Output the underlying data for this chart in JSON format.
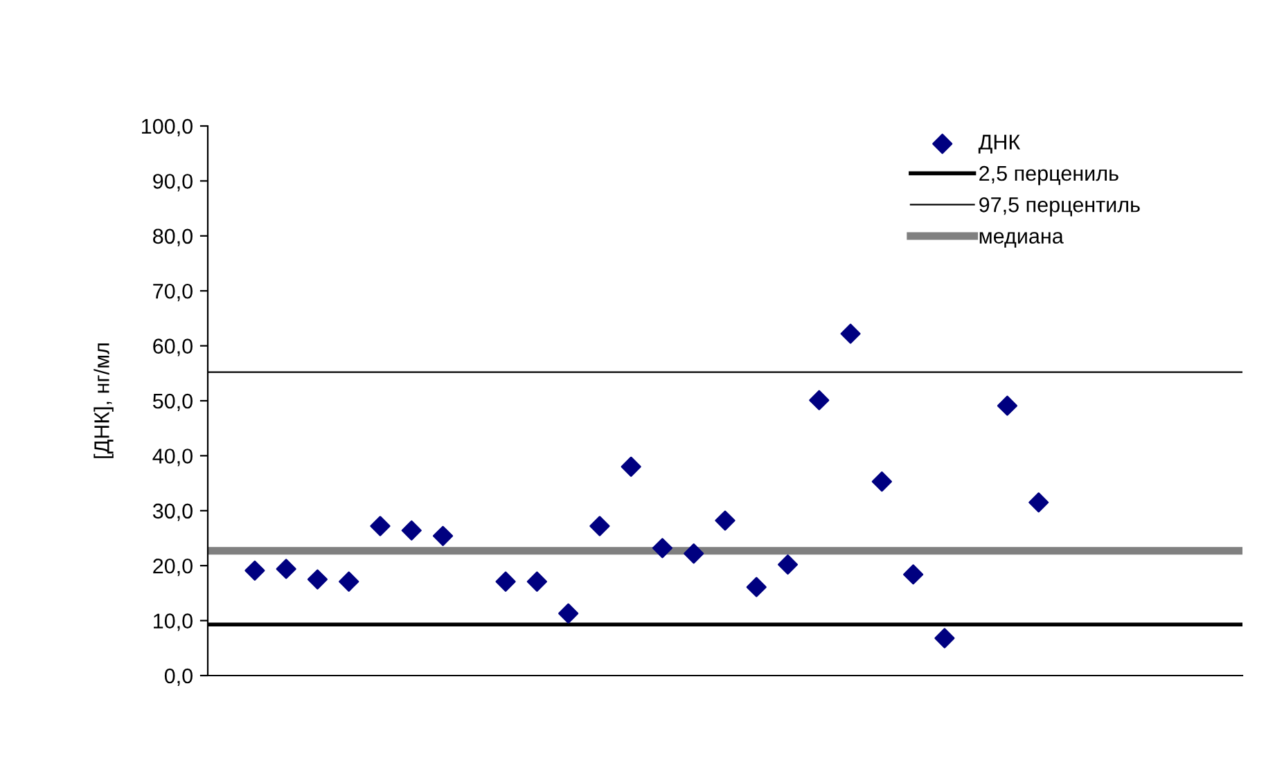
{
  "chart_data": {
    "type": "scatter",
    "ylabel": "[ДНК], нг/мл",
    "categories": [
      null,
      null,
      null,
      null,
      null,
      null,
      null,
      null,
      null,
      null,
      null,
      null,
      null,
      null,
      null,
      null,
      null,
      null,
      null,
      null,
      null,
      null,
      null,
      null,
      null,
      null,
      null,
      null,
      null,
      null,
      null,
      null,
      null
    ],
    "series": [
      {
        "name": "ДНК",
        "color": "#000080",
        "values": [
          null,
          19.1,
          19.4,
          17.5,
          17.1,
          27.2,
          26.4,
          25.4,
          null,
          17.1,
          17.1,
          11.3,
          27.2,
          38.0,
          23.2,
          22.2,
          28.2,
          16.1,
          20.2,
          50.1,
          62.2,
          35.3,
          18.4,
          6.8,
          null,
          49.1,
          31.5,
          null,
          null,
          null,
          null,
          null,
          null
        ]
      }
    ],
    "marker": "diamond",
    "ylim": [
      0,
      100
    ],
    "yticks": [
      {
        "value": 0,
        "label": "0,0"
      },
      {
        "value": 10,
        "label": "10,0"
      },
      {
        "value": 20,
        "label": "20,0"
      },
      {
        "value": 30,
        "label": "30,0"
      },
      {
        "value": 40,
        "label": "40,0"
      },
      {
        "value": 50,
        "label": "50,0"
      },
      {
        "value": 60,
        "label": "60,0"
      },
      {
        "value": 70,
        "label": "70,0"
      },
      {
        "value": 80,
        "label": "80,0"
      },
      {
        "value": 90,
        "label": "90,0"
      },
      {
        "value": 100,
        "label": "100,0"
      }
    ],
    "ref_lines": [
      {
        "axis": "y",
        "value": 9.3,
        "label": "2,5 перцениль",
        "color": "#000000"
      },
      {
        "axis": "y",
        "value": 55.2,
        "label": "97,5 перцентиль",
        "color": "#000000"
      },
      {
        "axis": "y",
        "value": 22.7,
        "label": "медиана",
        "color": "#808080"
      }
    ],
    "grid": false,
    "legend": "top right"
  }
}
